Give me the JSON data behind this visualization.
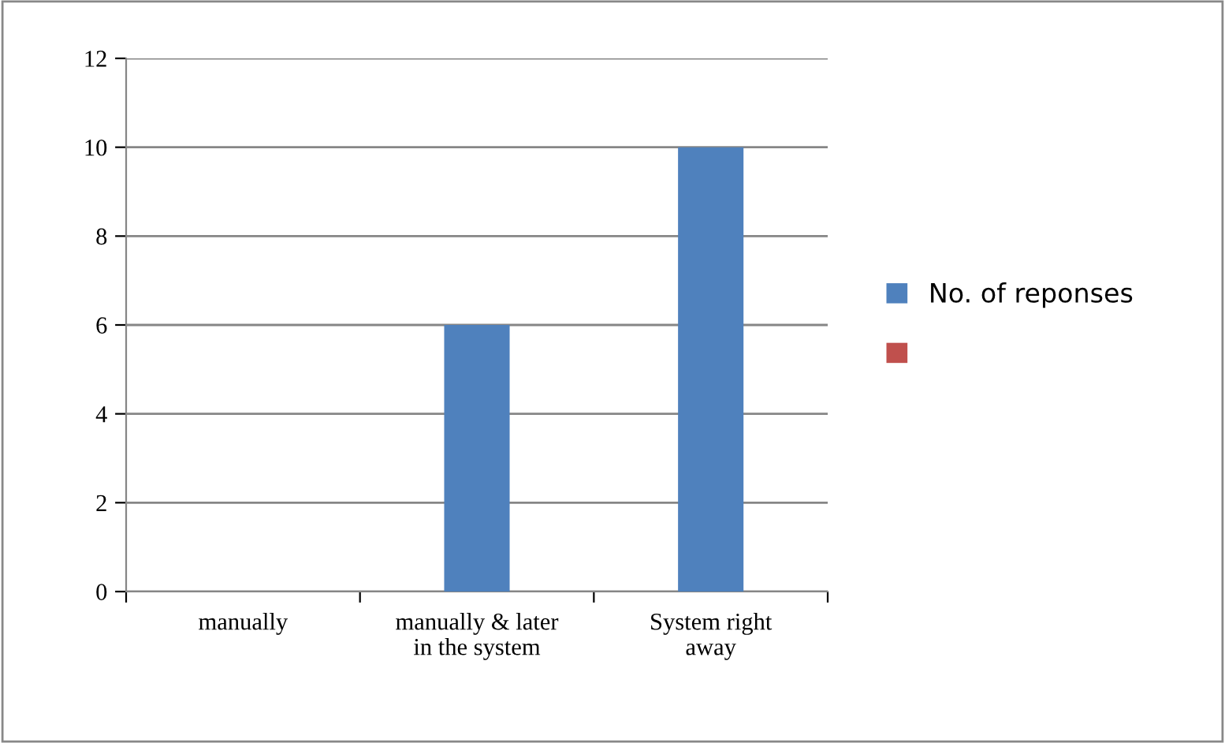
{
  "chart_data": {
    "type": "bar",
    "categories": [
      "manually",
      "manually & later\nin the system",
      "System right\naway"
    ],
    "series": [
      {
        "name": "No. of reponses",
        "color": "#4f81bd",
        "values": [
          0,
          6,
          10
        ]
      },
      {
        "color": "#c0504d",
        "values": [
          null,
          null,
          null
        ]
      }
    ],
    "ylim": [
      0,
      12
    ],
    "yticks": [
      0,
      2,
      4,
      6,
      8,
      10,
      12
    ],
    "grid": "y",
    "legend": "right"
  }
}
